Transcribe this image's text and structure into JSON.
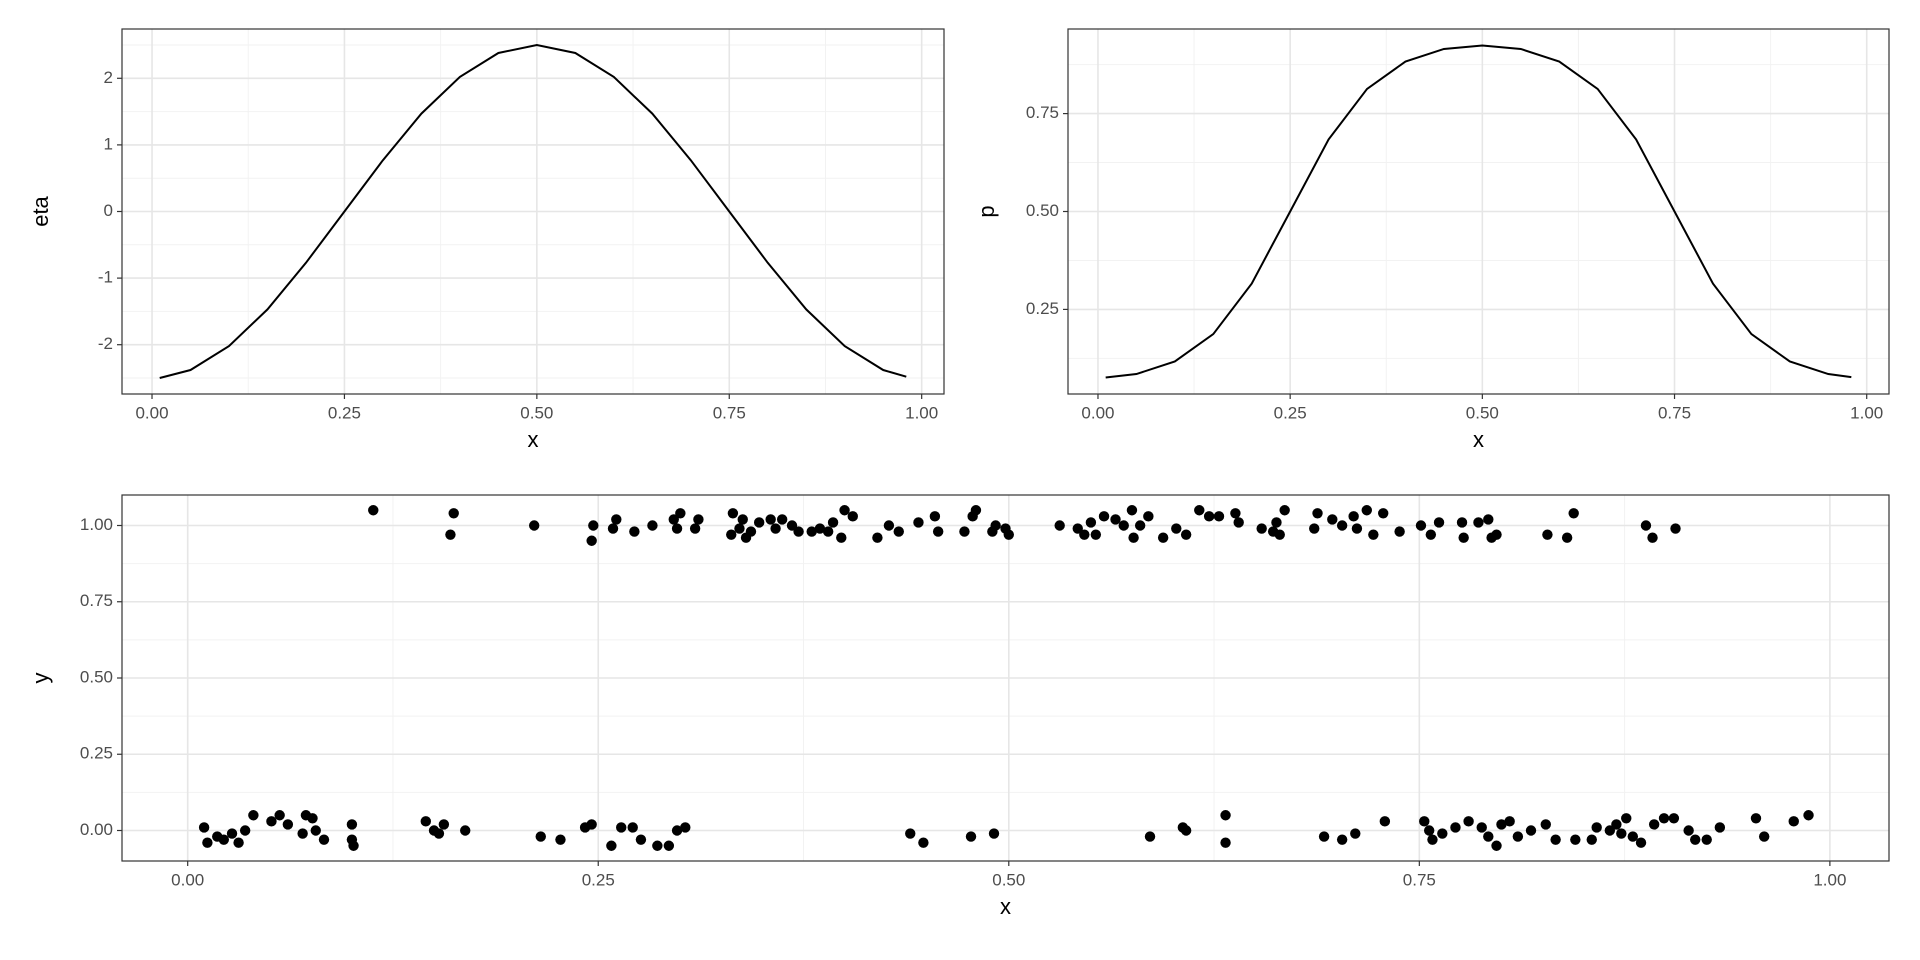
{
  "chart_data": [
    {
      "type": "line",
      "xlabel": "x",
      "ylabel": "eta",
      "color": "#000000",
      "grid": true,
      "x": [
        0.01,
        0.05,
        0.1,
        0.15,
        0.2,
        0.25,
        0.3,
        0.35,
        0.4,
        0.45,
        0.5,
        0.55,
        0.6,
        0.65,
        0.7,
        0.75,
        0.8,
        0.85,
        0.9,
        0.95,
        0.98
      ],
      "values": [
        -2.5,
        -2.38,
        -2.02,
        -1.47,
        -0.77,
        0,
        0.77,
        1.47,
        2.02,
        2.38,
        2.5,
        2.38,
        2.02,
        1.47,
        0.77,
        0,
        -0.77,
        -1.47,
        -2.02,
        -2.38,
        -2.48
      ],
      "xlim": [
        -0.039,
        1.029
      ],
      "ylim": [
        -2.74,
        2.74
      ],
      "xticks": [
        {
          "value": 0,
          "label": "0.00"
        },
        0.25,
        {
          "value": 0.5,
          "label": "0.50"
        },
        0.75,
        {
          "value": 1,
          "label": "1.00"
        }
      ],
      "yticks": [
        -2,
        -1,
        0,
        1,
        2
      ]
    },
    {
      "type": "line",
      "xlabel": "x",
      "ylabel": "p",
      "color": "#000000",
      "grid": true,
      "x": [
        0.01,
        0.05,
        0.1,
        0.15,
        0.2,
        0.25,
        0.3,
        0.35,
        0.4,
        0.45,
        0.5,
        0.55,
        0.6,
        0.65,
        0.7,
        0.75,
        0.8,
        0.85,
        0.9,
        0.95,
        0.98
      ],
      "values": [
        0.076,
        0.085,
        0.117,
        0.187,
        0.316,
        0.5,
        0.684,
        0.813,
        0.883,
        0.915,
        0.924,
        0.915,
        0.883,
        0.813,
        0.684,
        0.5,
        0.316,
        0.187,
        0.117,
        0.085,
        0.077
      ],
      "xlim": [
        -0.039,
        1.029
      ],
      "ylim": [
        0.034,
        0.966
      ],
      "xticks": [
        {
          "value": 0,
          "label": "0.00"
        },
        0.25,
        {
          "value": 0.5,
          "label": "0.50"
        },
        0.75,
        {
          "value": 1,
          "label": "1.00"
        }
      ],
      "yticks": [
        0.25,
        {
          "value": 0.5,
          "label": "0.50"
        },
        0.75
      ]
    },
    {
      "type": "scatter",
      "xlabel": "x",
      "ylabel": "y",
      "color": "#000000",
      "grid": true,
      "x": [
        0.113,
        0.162,
        0.16,
        0.211,
        0.247,
        0.246,
        0.259,
        0.261,
        0.272,
        0.283,
        0.296,
        0.3,
        0.298,
        0.311,
        0.309,
        0.332,
        0.331,
        0.336,
        0.338,
        0.34,
        0.343,
        0.348,
        0.355,
        0.358,
        0.362,
        0.368,
        0.372,
        0.38,
        0.385,
        0.39,
        0.393,
        0.398,
        0.4,
        0.405,
        0.42,
        0.427,
        0.433,
        0.445,
        0.455,
        0.457,
        0.473,
        0.478,
        0.48,
        0.49,
        0.492,
        0.498,
        0.5,
        0.531,
        0.542,
        0.546,
        0.55,
        0.553,
        0.558,
        0.565,
        0.57,
        0.575,
        0.576,
        0.58,
        0.585,
        0.594,
        0.602,
        0.608,
        0.616,
        0.622,
        0.628,
        0.638,
        0.64,
        0.654,
        0.661,
        0.663,
        0.665,
        0.668,
        0.686,
        0.688,
        0.697,
        0.703,
        0.71,
        0.712,
        0.718,
        0.722,
        0.728,
        0.738,
        0.751,
        0.757,
        0.762,
        0.776,
        0.777,
        0.786,
        0.792,
        0.794,
        0.797,
        0.828,
        0.84,
        0.844,
        0.888,
        0.892,
        0.906,
        0.01,
        0.012,
        0.018,
        0.022,
        0.027,
        0.031,
        0.035,
        0.04,
        0.051,
        0.056,
        0.061,
        0.07,
        0.072,
        0.076,
        0.078,
        0.083,
        0.1,
        0.1,
        0.101,
        0.145,
        0.15,
        0.153,
        0.156,
        0.169,
        0.215,
        0.227,
        0.242,
        0.246,
        0.258,
        0.264,
        0.271,
        0.276,
        0.286,
        0.293,
        0.298,
        0.303,
        0.44,
        0.448,
        0.477,
        0.491,
        0.586,
        0.606,
        0.608,
        0.632,
        0.632,
        0.692,
        0.703,
        0.711,
        0.729,
        0.753,
        0.756,
        0.758,
        0.764,
        0.772,
        0.78,
        0.788,
        0.792,
        0.797,
        0.8,
        0.805,
        0.81,
        0.818,
        0.827,
        0.833,
        0.845,
        0.855,
        0.858,
        0.866,
        0.87,
        0.873,
        0.876,
        0.88,
        0.885,
        0.893,
        0.899,
        0.905,
        0.914,
        0.918,
        0.925,
        0.933,
        0.955,
        0.96,
        0.978,
        0.987
      ],
      "values": [
        1.05,
        1.04,
        0.97,
        1.0,
        1.0,
        0.95,
        0.99,
        1.02,
        0.98,
        1.0,
        1.02,
        1.04,
        0.99,
        1.02,
        0.99,
        1.04,
        0.97,
        0.99,
        1.02,
        0.96,
        0.98,
        1.01,
        1.02,
        0.99,
        1.02,
        1.0,
        0.98,
        0.98,
        0.99,
        0.98,
        1.01,
        0.96,
        1.05,
        1.03,
        0.96,
        1.0,
        0.98,
        1.01,
        1.03,
        0.98,
        0.98,
        1.03,
        1.05,
        0.98,
        1.0,
        0.99,
        0.97,
        1.0,
        0.99,
        0.97,
        1.01,
        0.97,
        1.03,
        1.02,
        1.0,
        1.05,
        0.96,
        1.0,
        1.03,
        0.96,
        0.99,
        0.97,
        1.05,
        1.03,
        1.03,
        1.04,
        1.01,
        0.99,
        0.98,
        1.01,
        0.97,
        1.05,
        0.99,
        1.04,
        1.02,
        1.0,
        1.03,
        0.99,
        1.05,
        0.97,
        1.04,
        0.98,
        1.0,
        0.97,
        1.01,
        1.01,
        0.96,
        1.01,
        1.02,
        0.96,
        0.97,
        0.97,
        0.96,
        1.04,
        1.0,
        0.96,
        0.99,
        0.01,
        -0.04,
        -0.02,
        -0.03,
        -0.01,
        -0.04,
        0.0,
        0.05,
        0.03,
        0.05,
        0.02,
        -0.01,
        0.05,
        0.04,
        0.0,
        -0.03,
        0.02,
        -0.03,
        -0.05,
        0.03,
        0.0,
        -0.01,
        0.02,
        0.0,
        -0.02,
        -0.03,
        0.01,
        0.02,
        -0.05,
        0.01,
        0.01,
        -0.03,
        -0.05,
        -0.05,
        0.0,
        0.01,
        -0.01,
        -0.04,
        -0.02,
        -0.01,
        -0.02,
        0.01,
        0.0,
        0.05,
        -0.04,
        -0.02,
        -0.03,
        -0.01,
        0.03,
        0.03,
        0.0,
        -0.03,
        -0.01,
        0.01,
        0.03,
        0.01,
        -0.02,
        -0.05,
        0.02,
        0.03,
        -0.02,
        0.0,
        0.02,
        -0.03,
        -0.03,
        -0.03,
        0.01,
        0.0,
        0.02,
        -0.01,
        0.04,
        -0.02,
        -0.04,
        0.02,
        0.04,
        0.04,
        0.0,
        -0.03,
        -0.03,
        0.01,
        0.04,
        -0.02,
        0.03,
        0.05
      ],
      "xlim": [
        -0.04,
        1.036
      ],
      "ylim": [
        -0.1,
        1.1
      ],
      "xticks": [
        {
          "value": 0,
          "label": "0.00"
        },
        0.25,
        {
          "value": 0.5,
          "label": "0.50"
        },
        0.75,
        {
          "value": 1,
          "label": "1.00"
        }
      ],
      "yticks": [
        {
          "value": 0,
          "label": "0.00"
        },
        0.25,
        {
          "value": 0.5,
          "label": "0.50"
        },
        0.75,
        {
          "value": 1,
          "label": "1.00"
        }
      ]
    }
  ]
}
